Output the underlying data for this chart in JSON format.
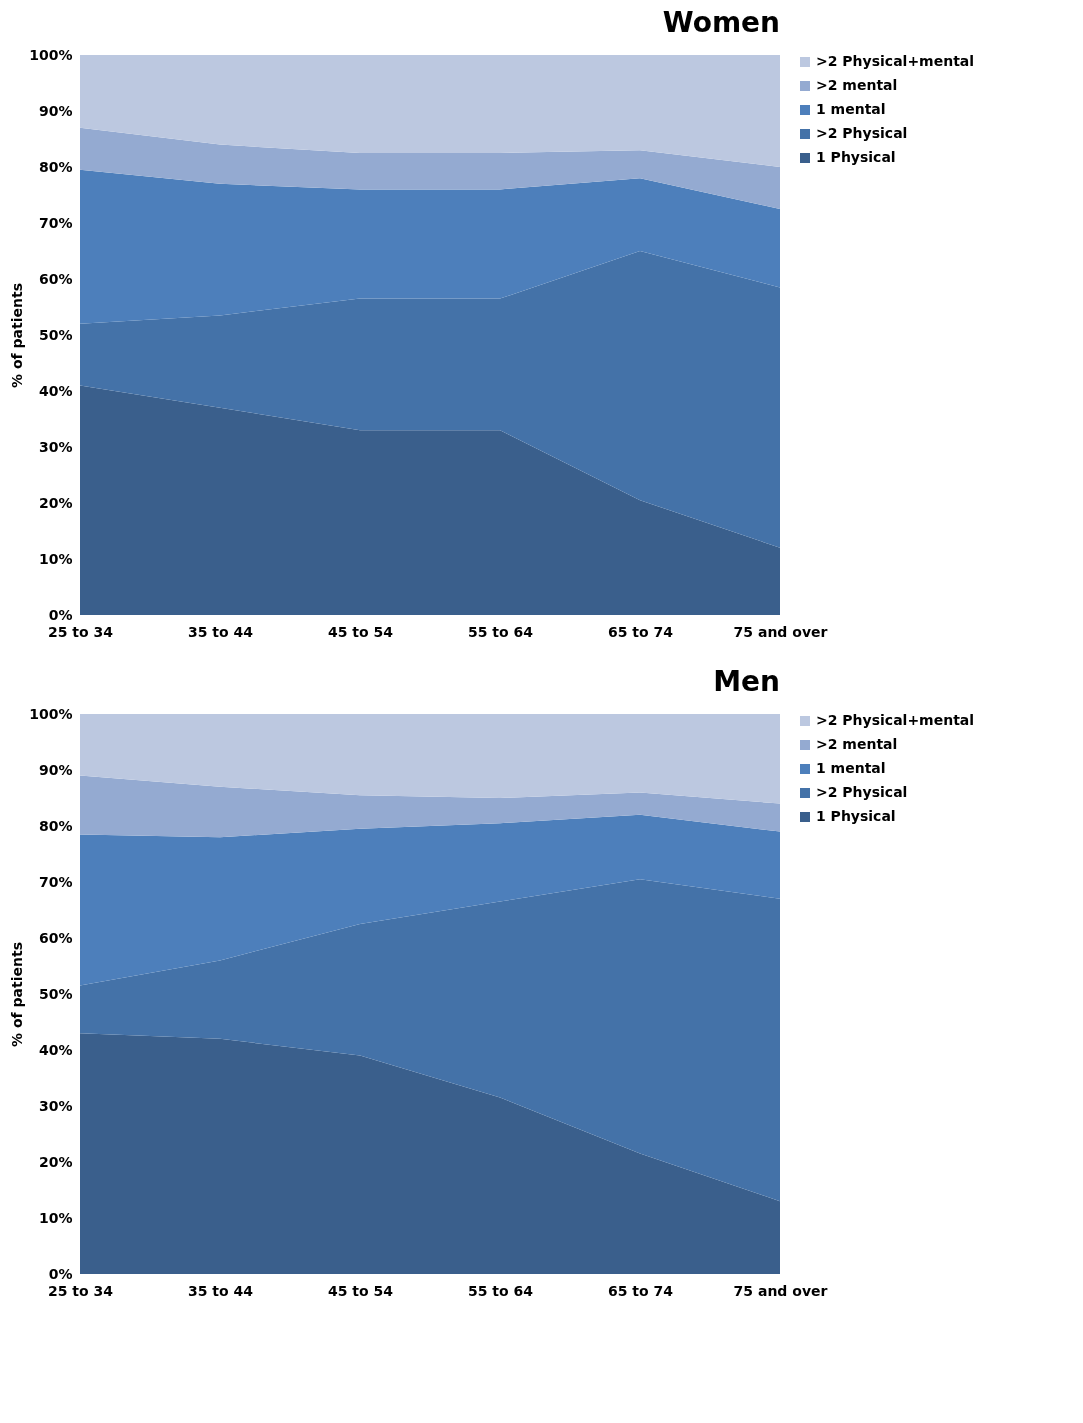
{
  "chart_data": [
    {
      "type": "area",
      "title": "Women",
      "ylabel": "% of patients",
      "stacked": true,
      "legend": "right",
      "grid": false,
      "categories": [
        "25 to 34",
        "35 to 44",
        "45 to 54",
        "55 to 64",
        "65 to 74",
        "75 and over"
      ],
      "ylim": [
        0,
        100
      ],
      "yticks": [
        {
          "value": 0,
          "label": "0%"
        },
        {
          "value": 10,
          "label": "10%"
        },
        {
          "value": 20,
          "label": "20%"
        },
        {
          "value": 30,
          "label": "30%"
        },
        {
          "value": 40,
          "label": "40%"
        },
        {
          "value": 50,
          "label": "50%"
        },
        {
          "value": 60,
          "label": "60%"
        },
        {
          "value": 70,
          "label": "70%"
        },
        {
          "value": 80,
          "label": "80%"
        },
        {
          "value": 90,
          "label": "90%"
        },
        {
          "value": 100,
          "label": "100%"
        }
      ],
      "series": [
        {
          "name": "1 Physical",
          "color": "#3a5f8c",
          "values": [
            41,
            37,
            33,
            33,
            20.5,
            12
          ]
        },
        {
          "name": ">2 Physical",
          "color": "#4472a8",
          "values": [
            11,
            16.5,
            23.5,
            23.5,
            44.5,
            46.5
          ]
        },
        {
          "name": "1 mental",
          "color": "#4d7fbb",
          "values": [
            27.5,
            23.5,
            19.5,
            19.5,
            13,
            14
          ]
        },
        {
          "name": ">2 mental",
          "color": "#94aad1",
          "values": [
            7.5,
            7,
            6.5,
            6.5,
            5,
            7.5
          ]
        },
        {
          "name": ">2 Physical+mental",
          "color": "#bcc8e0",
          "values": [
            13,
            16,
            17.5,
            17.5,
            17,
            20
          ]
        }
      ]
    },
    {
      "type": "area",
      "title": "Men",
      "ylabel": "% of patients",
      "stacked": true,
      "legend": "right",
      "grid": false,
      "categories": [
        "25 to 34",
        "35 to 44",
        "45 to 54",
        "55 to 64",
        "65 to 74",
        "75 and over"
      ],
      "ylim": [
        0,
        100
      ],
      "yticks": [
        {
          "value": 0,
          "label": "0%"
        },
        {
          "value": 10,
          "label": "10%"
        },
        {
          "value": 20,
          "label": "20%"
        },
        {
          "value": 30,
          "label": "30%"
        },
        {
          "value": 40,
          "label": "40%"
        },
        {
          "value": 50,
          "label": "50%"
        },
        {
          "value": 60,
          "label": "60%"
        },
        {
          "value": 70,
          "label": "70%"
        },
        {
          "value": 80,
          "label": "80%"
        },
        {
          "value": 90,
          "label": "90%"
        },
        {
          "value": 100,
          "label": "100%"
        }
      ],
      "series": [
        {
          "name": "1 Physical",
          "color": "#3a5f8c",
          "values": [
            43,
            42,
            39,
            31.5,
            21.5,
            13
          ]
        },
        {
          "name": ">2 Physical",
          "color": "#4472a8",
          "values": [
            8.5,
            14,
            23.5,
            35,
            49,
            54
          ]
        },
        {
          "name": "1 mental",
          "color": "#4d7fbb",
          "values": [
            27,
            22,
            17,
            14,
            11.5,
            12
          ]
        },
        {
          "name": ">2 mental",
          "color": "#94aad1",
          "values": [
            10.5,
            9,
            6,
            4.5,
            4,
            5
          ]
        },
        {
          "name": ">2 Physical+mental",
          "color": "#bcc8e0",
          "values": [
            11,
            13,
            14.5,
            15,
            14,
            16
          ]
        }
      ]
    }
  ]
}
